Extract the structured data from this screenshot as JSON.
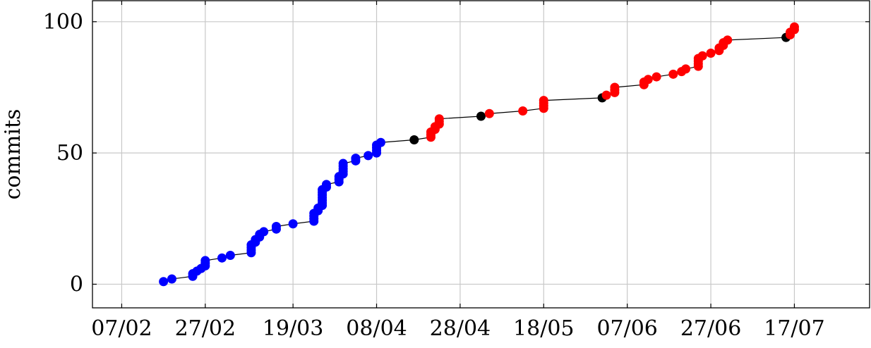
{
  "chart_data": {
    "type": "scatter",
    "ylabel": "commits",
    "xlabel": "",
    "grid": true,
    "x_unit": "date (2020)",
    "xlim": [
      "2020-01-31",
      "2020-08-04"
    ],
    "ylim": [
      -9,
      108
    ],
    "xticks": [
      {
        "date": "2020-02-07",
        "label": "07/02"
      },
      {
        "date": "2020-02-27",
        "label": "27/02"
      },
      {
        "date": "2020-03-19",
        "label": "19/03"
      },
      {
        "date": "2020-04-08",
        "label": "08/04"
      },
      {
        "date": "2020-04-28",
        "label": "28/04"
      },
      {
        "date": "2020-05-18",
        "label": "18/05"
      },
      {
        "date": "2020-06-07",
        "label": "07/06"
      },
      {
        "date": "2020-06-27",
        "label": "27/06"
      },
      {
        "date": "2020-07-17",
        "label": "17/07"
      }
    ],
    "yticks": [
      0,
      50,
      100
    ],
    "line_color": "#000000",
    "series": [
      {
        "color": "#0000ff",
        "points": [
          [
            "2020-02-17",
            1
          ],
          [
            "2020-02-19",
            2
          ],
          [
            "2020-02-24",
            3
          ],
          [
            "2020-02-24",
            4
          ],
          [
            "2020-02-25",
            5
          ],
          [
            "2020-02-26",
            6
          ],
          [
            "2020-02-27",
            7
          ],
          [
            "2020-02-27",
            8
          ],
          [
            "2020-02-27",
            9
          ],
          [
            "2020-03-02",
            10
          ],
          [
            "2020-03-04",
            11
          ],
          [
            "2020-03-09",
            12
          ],
          [
            "2020-03-09",
            13
          ],
          [
            "2020-03-09",
            14
          ],
          [
            "2020-03-09",
            15
          ],
          [
            "2020-03-10",
            16
          ],
          [
            "2020-03-10",
            17
          ],
          [
            "2020-03-11",
            18
          ],
          [
            "2020-03-11",
            19
          ],
          [
            "2020-03-12",
            20
          ],
          [
            "2020-03-15",
            21
          ],
          [
            "2020-03-15",
            22
          ],
          [
            "2020-03-19",
            23
          ],
          [
            "2020-03-24",
            24
          ],
          [
            "2020-03-24",
            25
          ],
          [
            "2020-03-24",
            26
          ],
          [
            "2020-03-24",
            27
          ],
          [
            "2020-03-25",
            28
          ],
          [
            "2020-03-25",
            29
          ],
          [
            "2020-03-26",
            30
          ],
          [
            "2020-03-26",
            31
          ],
          [
            "2020-03-26",
            32
          ],
          [
            "2020-03-26",
            33
          ],
          [
            "2020-03-26",
            34
          ],
          [
            "2020-03-26",
            35
          ],
          [
            "2020-03-26",
            36
          ],
          [
            "2020-03-27",
            37
          ],
          [
            "2020-03-27",
            38
          ],
          [
            "2020-03-30",
            39
          ],
          [
            "2020-03-30",
            40
          ],
          [
            "2020-03-30",
            41
          ],
          [
            "2020-03-31",
            42
          ],
          [
            "2020-03-31",
            43
          ],
          [
            "2020-03-31",
            44
          ],
          [
            "2020-03-31",
            45
          ],
          [
            "2020-03-31",
            46
          ],
          [
            "2020-04-03",
            47
          ],
          [
            "2020-04-03",
            48
          ],
          [
            "2020-04-06",
            49
          ],
          [
            "2020-04-08",
            50
          ],
          [
            "2020-04-08",
            51
          ],
          [
            "2020-04-08",
            52
          ],
          [
            "2020-04-08",
            53
          ],
          [
            "2020-04-09",
            54
          ]
        ]
      },
      {
        "color": "#000000",
        "points": [
          [
            "2020-04-17",
            55
          ],
          [
            "2020-05-03",
            64
          ],
          [
            "2020-06-01",
            71
          ],
          [
            "2020-07-15",
            94
          ]
        ]
      },
      {
        "color": "#ff0000",
        "points": [
          [
            "2020-04-21",
            56
          ],
          [
            "2020-04-21",
            57
          ],
          [
            "2020-04-21",
            58
          ],
          [
            "2020-04-22",
            59
          ],
          [
            "2020-04-22",
            60
          ],
          [
            "2020-04-23",
            61
          ],
          [
            "2020-04-23",
            62
          ],
          [
            "2020-04-23",
            63
          ],
          [
            "2020-05-05",
            65
          ],
          [
            "2020-05-13",
            66
          ],
          [
            "2020-05-18",
            67
          ],
          [
            "2020-05-18",
            68
          ],
          [
            "2020-05-18",
            69
          ],
          [
            "2020-05-18",
            70
          ],
          [
            "2020-06-02",
            72
          ],
          [
            "2020-06-04",
            73
          ],
          [
            "2020-06-04",
            74
          ],
          [
            "2020-06-04",
            75
          ],
          [
            "2020-06-11",
            76
          ],
          [
            "2020-06-11",
            77
          ],
          [
            "2020-06-12",
            78
          ],
          [
            "2020-06-14",
            79
          ],
          [
            "2020-06-18",
            80
          ],
          [
            "2020-06-20",
            81
          ],
          [
            "2020-06-21",
            82
          ],
          [
            "2020-06-24",
            83
          ],
          [
            "2020-06-24",
            84
          ],
          [
            "2020-06-24",
            85
          ],
          [
            "2020-06-24",
            86
          ],
          [
            "2020-06-25",
            87
          ],
          [
            "2020-06-27",
            88
          ],
          [
            "2020-06-29",
            89
          ],
          [
            "2020-06-29",
            90
          ],
          [
            "2020-06-30",
            91
          ],
          [
            "2020-06-30",
            92
          ],
          [
            "2020-07-01",
            93
          ],
          [
            "2020-07-16",
            95
          ],
          [
            "2020-07-16",
            96
          ],
          [
            "2020-07-17",
            97
          ],
          [
            "2020-07-17",
            98
          ]
        ]
      }
    ]
  }
}
